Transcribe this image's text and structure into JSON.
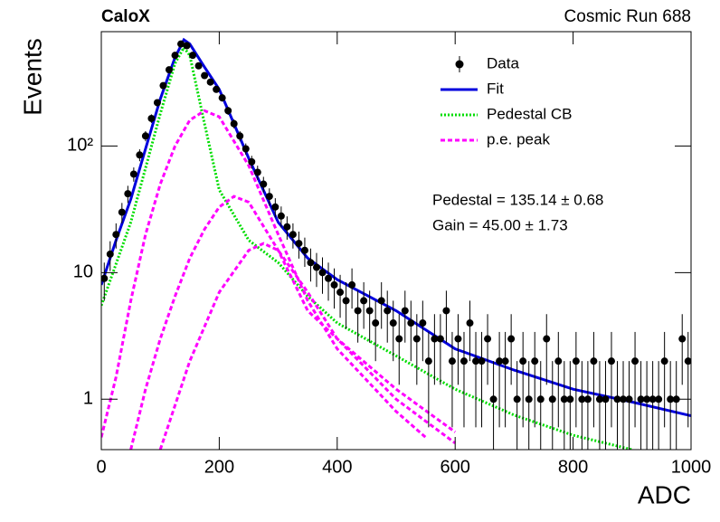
{
  "chart_data": {
    "type": "errorbar",
    "title": "CaloX",
    "subtitle": "Cosmic Run 688",
    "x_label": "ADC",
    "y_label": "Events",
    "log_y": true,
    "legend": "top-right",
    "annotations": [
      "Pedestal = 135.14 ± 0.68",
      "Gain = 45.00 ± 1.73"
    ],
    "xlim": [
      0,
      1000
    ],
    "xticks": [
      0,
      200,
      400,
      600,
      800,
      1000
    ],
    "ylim": [
      0.4,
      800
    ],
    "yticks": [
      1,
      10,
      {
        "value": 100,
        "label": "10²"
      }
    ],
    "data": {
      "name": "Data",
      "color": "#000000",
      "x": [
        5,
        15,
        25,
        35,
        45,
        55,
        65,
        75,
        85,
        95,
        105,
        115,
        125,
        135,
        145,
        155,
        165,
        175,
        185,
        195,
        205,
        215,
        225,
        235,
        245,
        255,
        265,
        275,
        285,
        295,
        305,
        315,
        325,
        335,
        345,
        355,
        365,
        375,
        385,
        395,
        405,
        415,
        425,
        435,
        445,
        455,
        465,
        475,
        485,
        495,
        505,
        515,
        525,
        535,
        545,
        555,
        565,
        575,
        585,
        595,
        605,
        615,
        625,
        635,
        645,
        655,
        665,
        675,
        685,
        695,
        705,
        715,
        725,
        735,
        745,
        755,
        765,
        775,
        785,
        795,
        805,
        815,
        825,
        835,
        845,
        855,
        865,
        875,
        885,
        895,
        905,
        915,
        925,
        935,
        945,
        955,
        965,
        975,
        985,
        995
      ],
      "values": [
        9,
        14,
        20,
        30,
        42,
        60,
        85,
        120,
        165,
        220,
        300,
        400,
        520,
        640,
        620,
        520,
        430,
        360,
        320,
        280,
        240,
        190,
        150,
        120,
        95,
        75,
        62,
        50,
        40,
        33,
        28,
        23,
        20,
        17,
        15,
        12,
        11,
        10,
        9,
        8,
        7,
        6,
        8,
        5,
        6,
        5,
        4,
        6,
        5,
        4,
        3,
        5,
        4,
        3,
        4,
        2,
        3,
        3,
        5,
        2,
        3,
        2,
        4,
        2,
        2,
        3,
        1,
        2,
        2,
        3,
        1,
        2,
        1,
        2,
        1,
        3,
        1,
        2,
        1,
        1,
        2,
        1,
        1,
        2,
        1,
        1,
        2,
        1,
        1,
        1,
        2,
        1,
        1,
        1,
        1,
        2,
        1,
        1,
        3,
        2
      ],
      "errors": [
        3,
        3.7,
        4.5,
        5.5,
        6.5,
        7.7,
        9.2,
        11,
        12.8,
        14.8,
        17.3,
        20,
        22.8,
        25.3,
        24.9,
        22.8,
        20.7,
        19,
        17.9,
        16.7,
        15.5,
        13.8,
        12.2,
        11,
        9.7,
        8.7,
        7.9,
        7.1,
        6.3,
        5.7,
        5.3,
        4.8,
        4.5,
        4.1,
        3.9,
        3.5,
        3.3,
        3.2,
        3,
        2.8,
        2.6,
        2.4,
        2.8,
        2.2,
        2.4,
        2.2,
        2,
        2.4,
        2.2,
        2,
        1.7,
        2.2,
        2,
        1.7,
        2,
        1.4,
        1.7,
        1.7,
        2.2,
        1.4,
        1.7,
        1.4,
        2,
        1.4,
        1.4,
        1.7,
        1,
        1.4,
        1.4,
        1.7,
        1,
        1.4,
        1,
        1.4,
        1,
        1.7,
        1,
        1.4,
        1,
        1,
        1.4,
        1,
        1,
        1.4,
        1,
        1,
        1.4,
        1,
        1,
        1,
        1.4,
        1,
        1,
        1,
        1,
        1.4,
        1,
        1,
        1.7,
        1.4
      ]
    },
    "curves": [
      {
        "name": "Fit",
        "color": "#0000dd",
        "style": "solid",
        "components": [
          {
            "x": [
              0,
              25,
              50,
              75,
              100,
              125,
              140,
              150,
              175,
              200,
              250,
              300,
              350,
              400,
              500,
              600,
              700,
              800,
              900,
              1000
            ],
            "values": [
              8,
              18,
              38,
              95,
              235,
              500,
              690,
              640,
              420,
              280,
              80,
              25,
              13,
              8.8,
              5,
              2.5,
              1.7,
              1.2,
              0.95,
              0.74
            ]
          }
        ]
      },
      {
        "name": "Pedestal CB",
        "color": "#00dd00",
        "style": "dotted",
        "components": [
          {
            "x": [
              0,
              50,
              100,
              125,
              140,
              150,
              175,
              200,
              250,
              300,
              350,
              400,
              500,
              600,
              700,
              800,
              900
            ],
            "values": [
              5.5,
              25,
              180,
              450,
              600,
              520,
              150,
              45,
              18,
              12,
              6.5,
              4,
              2.2,
              1.2,
              0.75,
              0.52,
              0.4
            ]
          }
        ]
      },
      {
        "name": "p.e. peak",
        "color": "#ff00ff",
        "style": "dashed",
        "components": [
          {
            "x": [
              0,
              25,
              50,
              75,
              100,
              125,
              150,
              175,
              200,
              250,
              300,
              350,
              400,
              500,
              550
            ],
            "values": [
              0.5,
              1.5,
              6,
              20,
              50,
              100,
              160,
              190,
              170,
              70,
              20,
              6,
              2.5,
              0.8,
              0.5
            ]
          },
          {
            "x": [
              50,
              75,
              100,
              125,
              150,
              175,
              200,
              225,
              250,
              300,
              350,
              400,
              500,
              600
            ],
            "values": [
              0.4,
              1.2,
              3,
              6.5,
              13,
              22,
              33,
              40,
              36,
              15,
              5,
              3,
              1.2,
              0.55
            ]
          },
          {
            "x": [
              100,
              150,
              200,
              250,
              275,
              300,
              350,
              400,
              500,
              600
            ],
            "values": [
              0.4,
              2,
              7,
              15,
              17,
              15,
              7,
              3,
              1,
              0.45
            ]
          }
        ]
      }
    ]
  }
}
